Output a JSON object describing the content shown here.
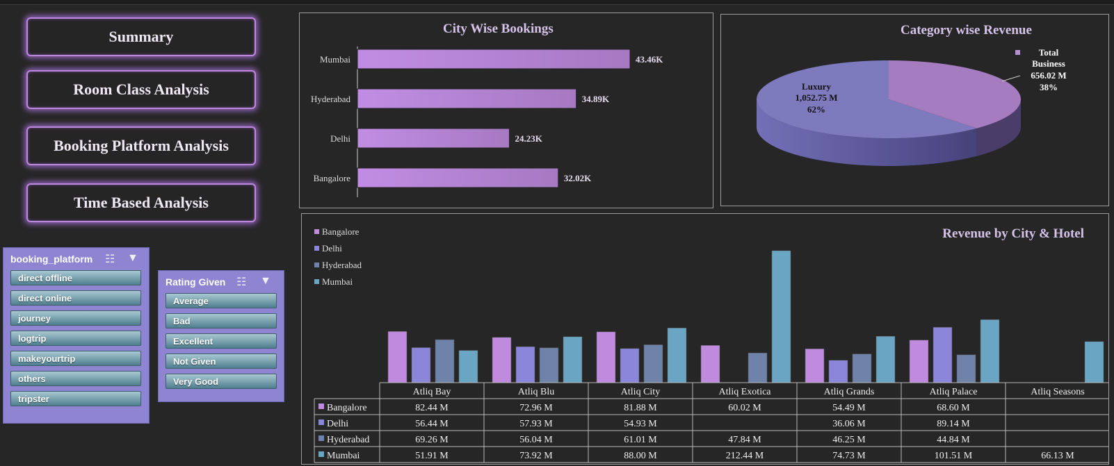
{
  "nav": {
    "summary": "Summary",
    "room_class": "Room Class Analysis",
    "booking_platform": "Booking Platform Analysis",
    "time_based": "Time Based Analysis"
  },
  "slicers": {
    "platform": {
      "title": "booking_platform",
      "items": [
        "direct offline",
        "direct online",
        "journey",
        "logtrip",
        "makeyourtrip",
        "others",
        "tripster"
      ]
    },
    "rating": {
      "title": "Rating Given",
      "items": [
        "Average",
        "Bad",
        "Excellent",
        "Not Given",
        "Very Good"
      ]
    }
  },
  "colors": {
    "bangalore": "#c08adf",
    "delhi": "#8b86da",
    "hyderabad": "#6f82aa",
    "mumbai": "#6aa6c3",
    "bar": "#bb86d8"
  },
  "chart_data": [
    {
      "type": "bar",
      "orientation": "horizontal",
      "title": "City Wise Bookings",
      "categories": [
        "Mumbai",
        "Hyderabad",
        "Delhi",
        "Bangalore"
      ],
      "values": [
        43.46,
        34.89,
        24.23,
        32.02
      ],
      "labels": [
        "43.46K",
        "34.89K",
        "24.23K",
        "32.02K"
      ],
      "unit": "K"
    },
    {
      "type": "pie",
      "title": "Category wise Revenue",
      "slices": [
        {
          "name": "Luxury",
          "value": 1052.75,
          "label": "1,052.75 M",
          "pct": "62%"
        },
        {
          "name": "Total Business",
          "name_lines": [
            "Total",
            "Business"
          ],
          "value": 656.02,
          "label": "656.02 M",
          "pct": "38%"
        }
      ]
    },
    {
      "type": "bar",
      "title": "Revenue by City & Hotel",
      "legend_position": "top-left",
      "categories": [
        "Atliq Bay",
        "Atliq Blu",
        "Atliq City",
        "Atliq Exotica",
        "Atliq Grands",
        "Atliq Palace",
        "Atliq Seasons"
      ],
      "series": [
        {
          "name": "Bangalore",
          "values": [
            82.44,
            72.96,
            81.88,
            60.02,
            54.49,
            68.6,
            null
          ],
          "labels": [
            "82.44 M",
            "72.96 M",
            "81.88 M",
            "60.02 M",
            "54.49 M",
            "68.60 M",
            ""
          ]
        },
        {
          "name": "Delhi",
          "values": [
            56.44,
            57.93,
            54.93,
            null,
            36.06,
            89.14,
            null
          ],
          "labels": [
            "56.44 M",
            "57.93 M",
            "54.93 M",
            "",
            "36.06 M",
            "89.14 M",
            ""
          ]
        },
        {
          "name": "Hyderabad",
          "values": [
            69.26,
            56.04,
            61.01,
            47.84,
            46.25,
            44.84,
            null
          ],
          "labels": [
            "69.26 M",
            "56.04 M",
            "61.01 M",
            "47.84 M",
            "46.25 M",
            "44.84 M",
            ""
          ]
        },
        {
          "name": "Mumbai",
          "values": [
            51.91,
            73.92,
            88.0,
            212.44,
            74.73,
            101.51,
            66.13
          ],
          "labels": [
            "51.91 M",
            "73.92 M",
            "88.00 M",
            "212.44 M",
            "74.73 M",
            "101.51 M",
            "66.13 M"
          ]
        }
      ],
      "ymax": 212.44,
      "data_table": true
    }
  ]
}
